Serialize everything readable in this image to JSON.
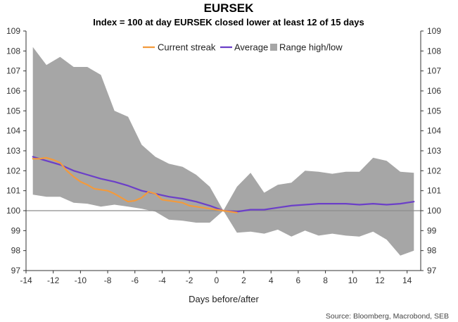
{
  "chart_data": {
    "type": "line",
    "title": "EURSEK",
    "subtitle": "Index = 100 at day EURSEK closed lower at least 12 of 15 days",
    "xlabel": "Days before/after",
    "source": "Source: Bloomberg, Macrobond, SEB",
    "xlim": [
      -14,
      15
    ],
    "ylim": [
      97,
      109
    ],
    "x_ticks": [
      -14,
      -12,
      -10,
      -8,
      -6,
      -4,
      -2,
      0,
      2,
      4,
      6,
      8,
      10,
      12,
      14
    ],
    "y_ticks": [
      97,
      98,
      99,
      100,
      101,
      102,
      103,
      104,
      105,
      106,
      107,
      108,
      109
    ],
    "reference_line": 100,
    "legend": {
      "placement": "top",
      "entries": [
        "Current streak",
        "Average",
        "Range high/low"
      ]
    },
    "colors": {
      "current": "#f39a3c",
      "average": "#6b3fc8",
      "range": "#a6a6a6",
      "baseline": "#8c8c8c"
    },
    "series": [
      {
        "name": "Range high/low",
        "kind": "band",
        "x": [
          -13.5,
          -12.5,
          -11.5,
          -10.5,
          -9.5,
          -8.5,
          -7.5,
          -6.5,
          -5.5,
          -4.5,
          -3.5,
          -2.5,
          -1.5,
          -0.5,
          0.5,
          1.5,
          2.5,
          3.5,
          4.5,
          5.5,
          6.5,
          7.5,
          8.5,
          9.5,
          10.5,
          11.5,
          12.5,
          13.5,
          14.5
        ],
        "high": [
          108.2,
          107.3,
          107.7,
          107.2,
          107.2,
          106.8,
          105.0,
          104.7,
          103.3,
          102.7,
          102.35,
          102.2,
          101.8,
          101.2,
          100.0,
          101.2,
          101.9,
          100.9,
          101.3,
          101.4,
          102.0,
          101.95,
          101.85,
          101.95,
          101.95,
          102.65,
          102.5,
          101.95,
          101.9
        ],
        "low": [
          100.8,
          100.7,
          100.7,
          100.4,
          100.35,
          100.2,
          100.3,
          100.2,
          100.1,
          99.95,
          99.55,
          99.5,
          99.4,
          99.4,
          100.0,
          98.9,
          98.95,
          98.85,
          99.05,
          98.7,
          99.0,
          98.75,
          98.85,
          98.75,
          98.7,
          98.95,
          98.55,
          97.75,
          98.0
        ]
      },
      {
        "name": "Average",
        "kind": "line",
        "x": [
          -13.5,
          -12.5,
          -11.5,
          -10.5,
          -9.5,
          -8.5,
          -7.5,
          -6.5,
          -5.5,
          -4.5,
          -3.5,
          -2.5,
          -1.5,
          -0.5,
          0.5,
          1.5,
          2.5,
          3.5,
          4.5,
          5.5,
          6.5,
          7.5,
          8.5,
          9.5,
          10.5,
          11.5,
          12.5,
          13.5,
          14.5
        ],
        "values": [
          102.7,
          102.5,
          102.3,
          102.0,
          101.8,
          101.6,
          101.45,
          101.25,
          101.0,
          100.85,
          100.7,
          100.6,
          100.45,
          100.25,
          100.0,
          99.95,
          100.05,
          100.05,
          100.15,
          100.25,
          100.3,
          100.35,
          100.35,
          100.35,
          100.3,
          100.35,
          100.3,
          100.35,
          100.45
        ]
      },
      {
        "name": "Current streak",
        "kind": "line",
        "x": [
          -13.5,
          -13.0,
          -12.5,
          -12.0,
          -11.5,
          -11.0,
          -10.5,
          -10.0,
          -9.5,
          -9.0,
          -8.5,
          -8.0,
          -7.5,
          -7.0,
          -6.5,
          -6.0,
          -5.5,
          -5.0,
          -4.5,
          -4.0,
          -3.5,
          -3.0,
          -2.5,
          -2.0,
          -1.5,
          -1.0,
          -0.5,
          0.0,
          0.5,
          1.0,
          1.5
        ],
        "values": [
          102.6,
          102.6,
          102.65,
          102.55,
          102.4,
          102.0,
          101.7,
          101.45,
          101.3,
          101.1,
          101.05,
          101.0,
          100.85,
          100.65,
          100.45,
          100.5,
          100.65,
          100.95,
          100.85,
          100.55,
          100.5,
          100.45,
          100.4,
          100.25,
          100.2,
          100.15,
          100.1,
          100.05,
          100.0,
          99.95,
          99.9
        ]
      }
    ]
  }
}
